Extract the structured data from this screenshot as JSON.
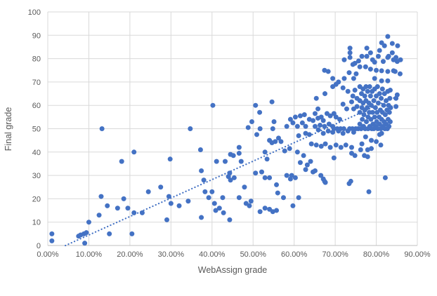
{
  "chart_data": {
    "type": "scatter",
    "title": "",
    "xlabel": "WebAssign grade",
    "ylabel": "Final grade",
    "xlim": [
      0,
      90
    ],
    "ylim": [
      0,
      100
    ],
    "x_ticks": [
      0,
      10,
      20,
      30,
      40,
      50,
      60,
      70,
      80,
      90
    ],
    "x_tick_labels": [
      "0.00%",
      "10.00%",
      "20.00%",
      "30.00%",
      "40.00%",
      "50.00%",
      "60.00%",
      "70.00%",
      "80.00%",
      "90.00%"
    ],
    "y_ticks": [
      0,
      10,
      20,
      30,
      40,
      50,
      60,
      70,
      80,
      90,
      100
    ],
    "y_tick_labels": [
      "0",
      "10",
      "20",
      "30",
      "40",
      "50",
      "60",
      "70",
      "80",
      "90",
      "100"
    ],
    "grid": true,
    "legend": false,
    "marker_color": "#4472C4",
    "gridline_color": "#D9D9D9",
    "axis_line_color": "#BFBFBF",
    "label_color": "#595959",
    "trendline": {
      "style": "dotted",
      "color": "#4472C4",
      "x1": 4.3,
      "y1": 0,
      "x2": 85.3,
      "y2": 64
    },
    "points": [
      [
        1,
        5
      ],
      [
        1,
        2
      ],
      [
        7.5,
        4
      ],
      [
        8,
        4.5
      ],
      [
        8.8,
        5
      ],
      [
        9,
        1
      ],
      [
        9.4,
        5.5
      ],
      [
        10,
        10
      ],
      [
        12.5,
        13
      ],
      [
        13,
        21
      ],
      [
        13.2,
        50
      ],
      [
        14.5,
        17
      ],
      [
        15,
        5
      ],
      [
        17,
        16
      ],
      [
        18,
        36
      ],
      [
        18.5,
        20
      ],
      [
        19.5,
        16
      ],
      [
        20.5,
        5
      ],
      [
        21,
        40
      ],
      [
        21,
        14
      ],
      [
        23,
        14
      ],
      [
        24.5,
        23
      ],
      [
        27.5,
        25
      ],
      [
        29,
        11
      ],
      [
        29.5,
        21
      ],
      [
        29.8,
        37
      ],
      [
        30,
        18
      ],
      [
        32,
        17
      ],
      [
        34.2,
        19
      ],
      [
        34.7,
        50
      ],
      [
        37.2,
        41
      ],
      [
        37.4,
        32
      ],
      [
        37.4,
        12
      ],
      [
        38,
        28
      ],
      [
        38.3,
        23
      ],
      [
        39.2,
        20.5
      ],
      [
        40,
        23
      ],
      [
        40.2,
        60
      ],
      [
        40.6,
        18
      ],
      [
        40.9,
        15
      ],
      [
        41.1,
        36
      ],
      [
        41.8,
        16
      ],
      [
        42.6,
        20.5
      ],
      [
        42.8,
        14
      ],
      [
        43.2,
        36
      ],
      [
        44,
        29.5
      ],
      [
        44.3,
        31
      ],
      [
        44.3,
        11
      ],
      [
        44.5,
        28
      ],
      [
        44.5,
        39
      ],
      [
        45.2,
        38.5
      ],
      [
        45.4,
        29
      ],
      [
        46.6,
        42
      ],
      [
        46.6,
        39.5
      ],
      [
        46.6,
        20.5
      ],
      [
        47.1,
        36
      ],
      [
        47.9,
        25
      ],
      [
        48.3,
        18
      ],
      [
        48.8,
        50.5
      ],
      [
        49.1,
        17
      ],
      [
        49.5,
        19
      ],
      [
        49.7,
        53
      ],
      [
        50.6,
        60
      ],
      [
        50.6,
        31
      ],
      [
        50.9,
        47.5
      ],
      [
        51.6,
        57
      ],
      [
        51.7,
        50
      ],
      [
        51.7,
        14.5
      ],
      [
        52.1,
        31.5
      ],
      [
        52.9,
        40
      ],
      [
        52.9,
        29
      ],
      [
        52.9,
        16
      ],
      [
        53.4,
        37
      ],
      [
        54,
        45
      ],
      [
        54,
        29
      ],
      [
        54,
        15.5
      ],
      [
        54.6,
        61.5
      ],
      [
        54.6,
        44
      ],
      [
        54.8,
        50
      ],
      [
        54.8,
        14.5
      ],
      [
        55.1,
        53
      ],
      [
        55.4,
        44.5
      ],
      [
        55.7,
        26
      ],
      [
        55.7,
        15
      ],
      [
        56,
        22.5
      ],
      [
        56.2,
        46
      ],
      [
        56.8,
        44.5
      ],
      [
        57.4,
        20.5
      ],
      [
        57.7,
        40.5
      ],
      [
        58.2,
        51
      ],
      [
        58.2,
        30
      ],
      [
        58.9,
        41.5
      ],
      [
        59.1,
        54
      ],
      [
        59.1,
        28.5
      ],
      [
        59.4,
        30
      ],
      [
        59.7,
        52.5
      ],
      [
        59.7,
        17
      ],
      [
        60.3,
        55
      ],
      [
        60.3,
        29
      ],
      [
        60.8,
        51
      ],
      [
        60.8,
        40
      ],
      [
        61.1,
        47
      ],
      [
        61.1,
        20.5
      ],
      [
        61.5,
        55.5
      ],
      [
        61.5,
        35.5
      ],
      [
        62,
        52.5
      ],
      [
        62.3,
        38.5
      ],
      [
        62.5,
        56
      ],
      [
        62.8,
        48
      ],
      [
        62.8,
        51
      ],
      [
        62.8,
        32.5
      ],
      [
        63.2,
        34.5
      ],
      [
        63.7,
        54
      ],
      [
        63.7,
        47.5
      ],
      [
        64,
        36
      ],
      [
        64.2,
        43.5
      ],
      [
        64.6,
        53.5
      ],
      [
        64.6,
        31.5
      ],
      [
        65.1,
        51
      ],
      [
        65.1,
        56.5
      ],
      [
        65.1,
        32
      ],
      [
        65.4,
        63
      ],
      [
        65.4,
        43
      ],
      [
        65.8,
        58.5
      ],
      [
        65.8,
        54.5
      ],
      [
        65.9,
        49.5
      ],
      [
        66.3,
        51.5
      ],
      [
        66.5,
        30
      ],
      [
        66.6,
        55
      ],
      [
        66.6,
        42.5
      ],
      [
        67.1,
        53.5
      ],
      [
        67.1,
        48
      ],
      [
        67.1,
        28.5
      ],
      [
        67.4,
        75
      ],
      [
        67.4,
        51
      ],
      [
        67.4,
        27.5
      ],
      [
        67.5,
        65
      ],
      [
        67.6,
        43.5
      ],
      [
        67.6,
        27
      ],
      [
        68,
        56.5
      ],
      [
        68.3,
        74.5
      ],
      [
        68.3,
        49
      ],
      [
        68.5,
        52
      ],
      [
        68.8,
        55.5
      ],
      [
        68.8,
        42
      ],
      [
        69.4,
        71.5
      ],
      [
        69.4,
        68
      ],
      [
        69.4,
        51
      ],
      [
        69.4,
        48.5
      ],
      [
        69.7,
        56.5
      ],
      [
        69.7,
        37.5
      ],
      [
        69.7,
        50
      ],
      [
        70.2,
        69
      ],
      [
        70.2,
        55
      ],
      [
        70.2,
        43
      ],
      [
        70.5,
        50
      ],
      [
        70.8,
        70
      ],
      [
        70.8,
        49
      ],
      [
        71.1,
        54
      ],
      [
        71.3,
        50
      ],
      [
        71.4,
        42
      ],
      [
        71.9,
        67.5
      ],
      [
        71.9,
        60.5
      ],
      [
        71.9,
        48
      ],
      [
        72.1,
        50
      ],
      [
        72.2,
        71.5
      ],
      [
        72.2,
        79.5
      ],
      [
        72.6,
        43
      ],
      [
        72.8,
        58.5
      ],
      [
        73.1,
        66
      ],
      [
        73.1,
        49
      ],
      [
        73.4,
        74
      ],
      [
        73.4,
        26.5
      ],
      [
        73.5,
        50
      ],
      [
        73.6,
        84.5
      ],
      [
        73.6,
        82.5
      ],
      [
        73.6,
        80.5
      ],
      [
        73.8,
        27.5
      ],
      [
        74,
        61.5
      ],
      [
        74,
        42
      ],
      [
        74,
        39.5
      ],
      [
        74.2,
        50
      ],
      [
        74.3,
        77.5
      ],
      [
        74.3,
        64
      ],
      [
        74.5,
        71.5
      ],
      [
        74.5,
        58.5
      ],
      [
        74.5,
        48.5
      ],
      [
        74.8,
        78
      ],
      [
        74.8,
        66.5
      ],
      [
        74.8,
        38.5
      ],
      [
        75,
        50
      ],
      [
        75.1,
        73.5
      ],
      [
        75.3,
        63
      ],
      [
        75.3,
        59.5
      ],
      [
        75.6,
        50
      ],
      [
        75.7,
        79
      ],
      [
        76,
        76.5
      ],
      [
        76.5,
        81
      ],
      [
        77.4,
        76.5
      ],
      [
        77.7,
        84.5
      ],
      [
        77.7,
        81
      ],
      [
        78.6,
        82.5
      ],
      [
        78.6,
        75.5
      ],
      [
        79.1,
        79.5
      ],
      [
        79.6,
        78.5
      ],
      [
        79.6,
        71.5
      ],
      [
        80,
        75
      ],
      [
        80.5,
        81
      ],
      [
        80.8,
        83.5
      ],
      [
        81.3,
        86.8
      ],
      [
        81.3,
        74.8
      ],
      [
        81.3,
        70.5
      ],
      [
        81.7,
        78.8
      ],
      [
        82,
        85.5
      ],
      [
        82.8,
        89.5
      ],
      [
        82.8,
        80.5
      ],
      [
        82.8,
        74.5
      ],
      [
        82.8,
        70.5
      ],
      [
        83,
        81
      ],
      [
        83.9,
        86.5
      ],
      [
        83.9,
        82.5
      ],
      [
        84.2,
        79.5
      ],
      [
        84.2,
        74.8
      ],
      [
        85.1,
        78.8
      ],
      [
        85.9,
        79.5
      ],
      [
        85.2,
        85.5
      ],
      [
        76,
        68
      ],
      [
        76,
        62
      ],
      [
        76,
        57
      ],
      [
        76,
        52
      ],
      [
        76.3,
        50
      ],
      [
        76.4,
        65
      ],
      [
        76.5,
        59
      ],
      [
        76.6,
        54
      ],
      [
        76.8,
        67
      ],
      [
        76.8,
        61
      ],
      [
        76.9,
        51
      ],
      [
        77,
        56
      ],
      [
        77.2,
        64
      ],
      [
        77.2,
        58
      ],
      [
        77.3,
        50
      ],
      [
        77.5,
        68
      ],
      [
        77.5,
        62
      ],
      [
        77.6,
        53
      ],
      [
        77.8,
        59
      ],
      [
        77.9,
        66
      ],
      [
        78,
        55
      ],
      [
        78,
        50
      ],
      [
        78.2,
        61
      ],
      [
        78.3,
        57
      ],
      [
        78.4,
        68
      ],
      [
        78.4,
        51
      ],
      [
        78.6,
        64
      ],
      [
        78.7,
        54
      ],
      [
        78.8,
        60
      ],
      [
        78.9,
        50
      ],
      [
        79,
        66
      ],
      [
        79.1,
        57
      ],
      [
        79.2,
        52
      ],
      [
        79.4,
        62
      ],
      [
        79.4,
        50
      ],
      [
        79.6,
        67
      ],
      [
        79.6,
        55
      ],
      [
        79.8,
        59
      ],
      [
        79.9,
        51
      ],
      [
        80,
        64
      ],
      [
        80.1,
        53
      ],
      [
        80.2,
        57
      ],
      [
        80.3,
        68
      ],
      [
        80.4,
        50
      ],
      [
        80.5,
        61
      ],
      [
        80.7,
        55
      ],
      [
        80.8,
        65
      ],
      [
        80.8,
        52
      ],
      [
        81,
        58
      ],
      [
        81.1,
        50
      ],
      [
        81.2,
        63
      ],
      [
        81.3,
        54
      ],
      [
        81.5,
        67
      ],
      [
        81.5,
        57
      ],
      [
        81.6,
        51
      ],
      [
        81.8,
        60
      ],
      [
        81.9,
        53
      ],
      [
        82,
        65
      ],
      [
        82.1,
        50
      ],
      [
        82.2,
        56
      ],
      [
        82.4,
        62
      ],
      [
        82.4,
        52
      ],
      [
        82.6,
        58
      ],
      [
        82.7,
        50
      ],
      [
        82.8,
        66
      ],
      [
        82.9,
        54
      ],
      [
        83,
        60
      ],
      [
        83.1,
        51
      ],
      [
        83.2,
        57
      ],
      [
        83.3,
        63
      ],
      [
        83.4,
        53
      ],
      [
        83.5,
        59
      ],
      [
        76.2,
        41
      ],
      [
        76.5,
        43.5
      ],
      [
        77.1,
        38.5
      ],
      [
        77.4,
        46.5
      ],
      [
        77.9,
        41
      ],
      [
        77.9,
        38
      ],
      [
        78.8,
        45
      ],
      [
        78.8,
        41.5
      ],
      [
        80,
        44.5
      ],
      [
        80.8,
        47.5
      ],
      [
        81.1,
        43
      ],
      [
        81.3,
        48
      ],
      [
        84.8,
        63
      ],
      [
        85.1,
        64.5
      ],
      [
        84.8,
        59.5
      ],
      [
        83.4,
        66.5
      ],
      [
        84.6,
        74.5
      ],
      [
        84.8,
        80.5
      ],
      [
        85.8,
        73.5
      ],
      [
        82.2,
        29
      ],
      [
        78.2,
        23
      ]
    ]
  }
}
